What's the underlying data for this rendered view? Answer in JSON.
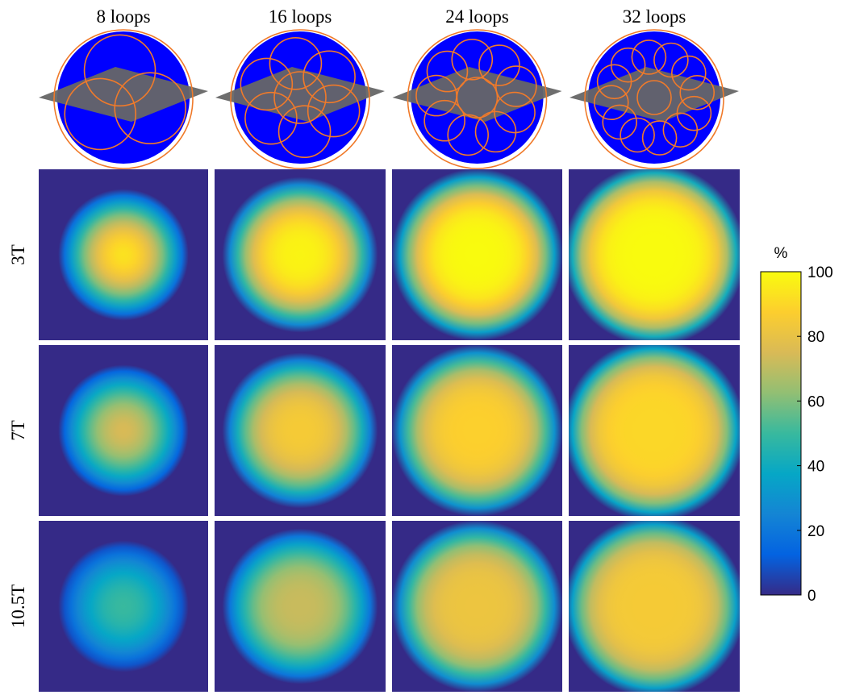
{
  "columns": [
    "8 loops",
    "16 loops",
    "24 loops",
    "32 loops"
  ],
  "rows": [
    "3T",
    "7T",
    "10.5T"
  ],
  "colorbar": {
    "label": "%",
    "lim": [
      0,
      100
    ],
    "ticks": [
      0,
      20,
      40,
      60,
      80,
      100
    ]
  }
}
